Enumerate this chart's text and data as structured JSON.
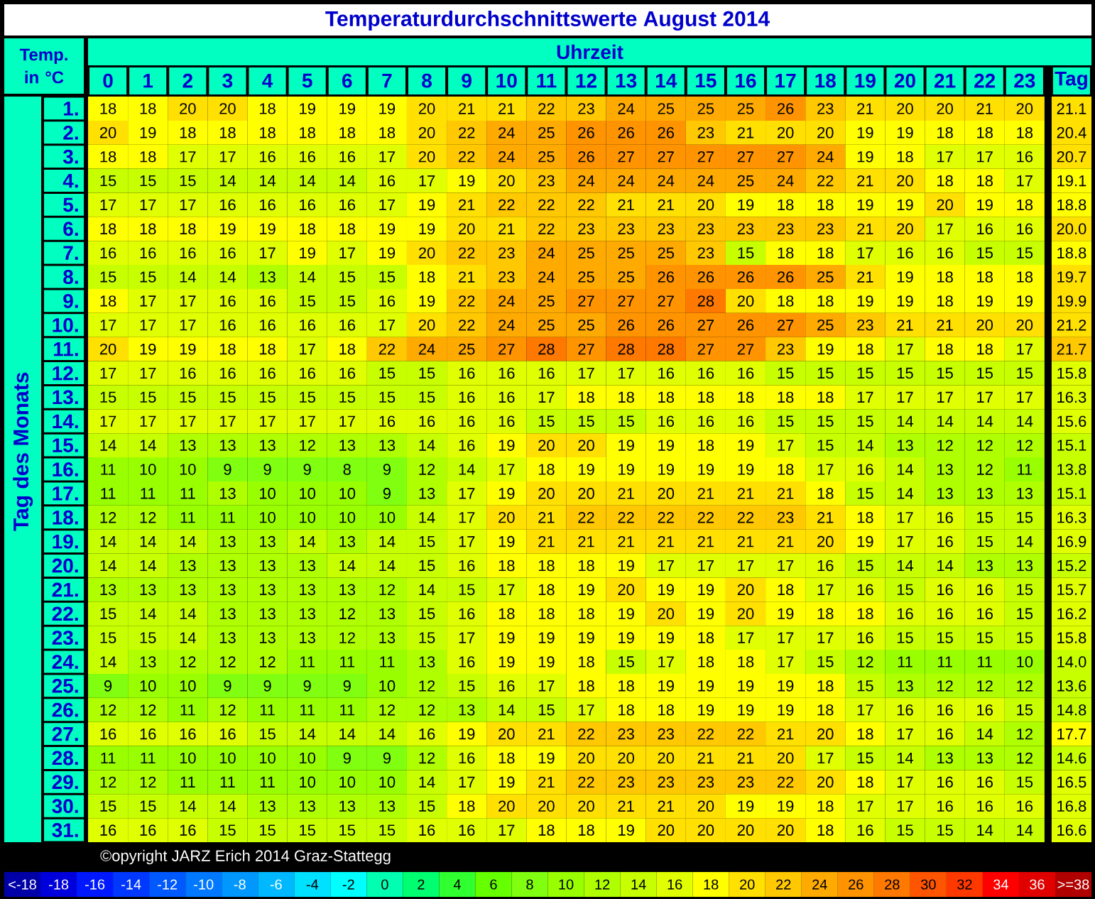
{
  "chart_data": {
    "type": "heatmap",
    "title": "Temperaturdurchschnittswerte August 2014",
    "xlabel": "Uhrzeit",
    "ylabel": "Tag des Monats",
    "clabel": "Temp. in °C",
    "categories": [
      "0",
      "1",
      "2",
      "3",
      "4",
      "5",
      "6",
      "7",
      "8",
      "9",
      "10",
      "11",
      "12",
      "13",
      "14",
      "15",
      "16",
      "17",
      "18",
      "19",
      "20",
      "21",
      "22",
      "23",
      "Tag"
    ],
    "y_categories": [
      "1.",
      "2.",
      "3.",
      "4.",
      "5.",
      "6.",
      "7.",
      "8.",
      "9.",
      "10.",
      "11.",
      "12.",
      "13.",
      "14.",
      "15.",
      "16.",
      "17.",
      "18.",
      "19.",
      "20.",
      "21.",
      "22.",
      "23.",
      "24.",
      "25.",
      "26.",
      "27.",
      "28.",
      "29.",
      "30.",
      "31."
    ],
    "cells": [
      [
        18,
        18,
        20,
        20,
        18,
        19,
        19,
        19,
        20,
        21,
        21,
        22,
        23,
        24,
        25,
        25,
        25,
        26,
        23,
        21,
        20,
        20,
        21,
        20,
        21.1
      ],
      [
        20,
        19,
        18,
        18,
        18,
        18,
        18,
        18,
        20,
        22,
        24,
        25,
        26,
        26,
        26,
        23,
        21,
        20,
        20,
        19,
        19,
        18,
        18,
        18,
        20.4
      ],
      [
        18,
        18,
        17,
        17,
        16,
        16,
        16,
        17,
        20,
        22,
        24,
        25,
        26,
        27,
        27,
        27,
        27,
        27,
        24,
        19,
        18,
        17,
        17,
        16,
        20.7
      ],
      [
        15,
        15,
        15,
        14,
        14,
        14,
        14,
        16,
        17,
        19,
        20,
        23,
        24,
        24,
        24,
        24,
        25,
        24,
        22,
        21,
        20,
        18,
        18,
        17,
        19.1
      ],
      [
        17,
        17,
        17,
        16,
        16,
        16,
        16,
        17,
        19,
        21,
        22,
        22,
        22,
        21,
        21,
        20,
        19,
        18,
        18,
        19,
        19,
        20,
        19,
        18,
        18.8
      ],
      [
        18,
        18,
        18,
        19,
        19,
        18,
        18,
        19,
        19,
        20,
        21,
        22,
        23,
        23,
        23,
        23,
        23,
        23,
        23,
        21,
        20,
        17,
        16,
        16,
        20.0
      ],
      [
        16,
        16,
        16,
        16,
        17,
        19,
        17,
        19,
        20,
        22,
        23,
        24,
        25,
        25,
        25,
        23,
        15,
        18,
        18,
        17,
        16,
        16,
        15,
        15,
        18.8
      ],
      [
        15,
        15,
        14,
        14,
        13,
        14,
        15,
        15,
        18,
        21,
        23,
        24,
        25,
        25,
        26,
        26,
        26,
        26,
        25,
        21,
        19,
        18,
        18,
        18,
        19.7
      ],
      [
        18,
        17,
        17,
        16,
        16,
        15,
        15,
        16,
        19,
        22,
        24,
        25,
        27,
        27,
        27,
        28,
        20,
        18,
        18,
        19,
        19,
        18,
        19,
        19,
        19.9
      ],
      [
        17,
        17,
        17,
        16,
        16,
        16,
        16,
        17,
        20,
        22,
        24,
        25,
        25,
        26,
        26,
        27,
        26,
        27,
        25,
        23,
        21,
        21,
        20,
        20,
        21.2
      ],
      [
        20,
        19,
        19,
        18,
        18,
        17,
        18,
        22,
        24,
        25,
        27,
        28,
        27,
        28,
        28,
        27,
        27,
        23,
        19,
        18,
        17,
        18,
        18,
        17,
        21.7
      ],
      [
        17,
        17,
        16,
        16,
        16,
        16,
        16,
        15,
        15,
        16,
        16,
        16,
        17,
        17,
        16,
        16,
        16,
        15,
        15,
        15,
        15,
        15,
        15,
        15,
        15.8
      ],
      [
        15,
        15,
        15,
        15,
        15,
        15,
        15,
        15,
        15,
        16,
        16,
        17,
        18,
        18,
        18,
        18,
        18,
        18,
        18,
        17,
        17,
        17,
        17,
        17,
        16.3
      ],
      [
        17,
        17,
        17,
        17,
        17,
        17,
        17,
        16,
        16,
        16,
        16,
        15,
        15,
        15,
        16,
        16,
        16,
        15,
        15,
        15,
        14,
        14,
        14,
        14,
        15.6
      ],
      [
        14,
        14,
        13,
        13,
        13,
        12,
        13,
        13,
        14,
        16,
        19,
        20,
        20,
        19,
        19,
        18,
        19,
        17,
        15,
        14,
        13,
        12,
        12,
        12,
        15.1
      ],
      [
        11,
        10,
        10,
        9,
        9,
        9,
        8,
        9,
        12,
        14,
        17,
        18,
        19,
        19,
        19,
        19,
        19,
        18,
        17,
        16,
        14,
        13,
        12,
        11,
        13.8
      ],
      [
        11,
        11,
        11,
        13,
        10,
        10,
        10,
        9,
        13,
        17,
        19,
        20,
        20,
        21,
        20,
        21,
        21,
        21,
        18,
        15,
        14,
        13,
        13,
        13,
        15.1
      ],
      [
        12,
        12,
        11,
        11,
        10,
        10,
        10,
        10,
        14,
        17,
        20,
        21,
        22,
        22,
        22,
        22,
        22,
        23,
        21,
        18,
        17,
        16,
        15,
        15,
        16.3
      ],
      [
        14,
        14,
        14,
        13,
        13,
        14,
        13,
        14,
        15,
        17,
        19,
        21,
        21,
        21,
        21,
        21,
        21,
        21,
        20,
        19,
        17,
        16,
        15,
        14,
        16.9
      ],
      [
        14,
        14,
        13,
        13,
        13,
        13,
        14,
        14,
        15,
        16,
        18,
        18,
        18,
        19,
        17,
        17,
        17,
        17,
        16,
        15,
        14,
        14,
        13,
        13,
        15.2
      ],
      [
        13,
        13,
        13,
        13,
        13,
        13,
        13,
        12,
        14,
        15,
        17,
        18,
        19,
        20,
        19,
        19,
        20,
        18,
        17,
        16,
        15,
        16,
        16,
        15,
        15.7
      ],
      [
        15,
        14,
        14,
        13,
        13,
        13,
        12,
        13,
        15,
        16,
        18,
        18,
        18,
        19,
        20,
        19,
        20,
        19,
        18,
        18,
        16,
        16,
        16,
        15,
        16.2
      ],
      [
        15,
        15,
        14,
        13,
        13,
        13,
        12,
        13,
        15,
        17,
        19,
        19,
        19,
        19,
        19,
        18,
        17,
        17,
        17,
        16,
        15,
        15,
        15,
        15,
        15.8
      ],
      [
        14,
        13,
        12,
        12,
        12,
        11,
        11,
        11,
        13,
        16,
        19,
        19,
        18,
        15,
        17,
        18,
        18,
        17,
        15,
        12,
        11,
        11,
        11,
        10,
        14.0
      ],
      [
        9,
        10,
        10,
        9,
        9,
        9,
        9,
        10,
        12,
        15,
        16,
        17,
        18,
        18,
        19,
        19,
        19,
        19,
        18,
        15,
        13,
        12,
        12,
        12,
        13.6
      ],
      [
        12,
        12,
        11,
        12,
        11,
        11,
        11,
        12,
        12,
        13,
        14,
        15,
        17,
        18,
        18,
        19,
        19,
        19,
        18,
        17,
        16,
        16,
        16,
        15,
        14.8
      ],
      [
        16,
        16,
        16,
        16,
        15,
        14,
        14,
        14,
        16,
        19,
        20,
        21,
        22,
        23,
        23,
        22,
        22,
        21,
        20,
        18,
        17,
        16,
        14,
        12,
        17.7
      ],
      [
        11,
        11,
        10,
        10,
        10,
        10,
        9,
        9,
        12,
        16,
        18,
        19,
        20,
        20,
        20,
        21,
        21,
        20,
        17,
        15,
        14,
        13,
        13,
        12,
        14.6
      ],
      [
        12,
        12,
        11,
        11,
        11,
        10,
        10,
        10,
        14,
        17,
        19,
        21,
        22,
        23,
        23,
        23,
        23,
        22,
        20,
        18,
        17,
        16,
        16,
        15,
        16.5
      ],
      [
        15,
        15,
        14,
        14,
        13,
        13,
        13,
        13,
        15,
        18,
        20,
        20,
        20,
        21,
        21,
        20,
        19,
        19,
        18,
        17,
        17,
        16,
        16,
        16,
        16.8
      ],
      [
        16,
        16,
        16,
        15,
        15,
        15,
        15,
        15,
        16,
        16,
        17,
        18,
        18,
        19,
        20,
        20,
        20,
        20,
        18,
        16,
        15,
        15,
        14,
        14,
        16.6
      ]
    ],
    "cell_labels": [
      [
        "18",
        "18",
        "20",
        "20",
        "18",
        "19",
        "19",
        "19",
        "20",
        "21",
        "21",
        "22",
        "23",
        "24",
        "25",
        "25",
        "25",
        "26",
        "23",
        "21",
        "20",
        "20",
        "21",
        "20",
        "21.1"
      ],
      [
        "20",
        "19",
        "18",
        "18",
        "18",
        "18",
        "18",
        "18",
        "20",
        "22",
        "24",
        "25",
        "26",
        "26",
        "26",
        "23",
        "21",
        "20",
        "20",
        "19",
        "19",
        "18",
        "18",
        "18",
        "20.4"
      ],
      [
        "18",
        "18",
        "17",
        "17",
        "16",
        "16",
        "16",
        "17",
        "20",
        "22",
        "24",
        "25",
        "26",
        "27",
        "27",
        "27",
        "27",
        "27",
        "24",
        "19",
        "18",
        "17",
        "17",
        "16",
        "20.7"
      ],
      [
        "15",
        "15",
        "15",
        "14",
        "14",
        "14",
        "14",
        "16",
        "17",
        "19",
        "20",
        "23",
        "24",
        "24",
        "24",
        "24",
        "25",
        "24",
        "22",
        "21",
        "20",
        "18",
        "18",
        "17",
        "19.1"
      ],
      [
        "17",
        "17",
        "17",
        "16",
        "16",
        "16",
        "16",
        "17",
        "19",
        "21",
        "22",
        "22",
        "22",
        "21",
        "21",
        "20",
        "19",
        "18",
        "18",
        "19",
        "19",
        "20",
        "19",
        "18",
        "18.8"
      ],
      [
        "18",
        "18",
        "18",
        "19",
        "19",
        "18",
        "18",
        "19",
        "19",
        "20",
        "21",
        "22",
        "23",
        "23",
        "23",
        "23",
        "23",
        "23",
        "23",
        "21",
        "20",
        "17",
        "16",
        "16",
        "20.0"
      ],
      [
        "16",
        "16",
        "16",
        "16",
        "17",
        "19",
        "17",
        "19",
        "20",
        "22",
        "23",
        "24",
        "25",
        "25",
        "25",
        "23",
        "15",
        "18",
        "18",
        "17",
        "16",
        "16",
        "15",
        "15",
        "18.8"
      ],
      [
        "15",
        "15",
        "14",
        "14",
        "13",
        "14",
        "15",
        "15",
        "18",
        "21",
        "23",
        "24",
        "25",
        "25",
        "26",
        "26",
        "26",
        "26",
        "25",
        "21",
        "19",
        "18",
        "18",
        "18",
        "19.7"
      ],
      [
        "18",
        "17",
        "17",
        "16",
        "16",
        "15",
        "15",
        "16",
        "19",
        "22",
        "24",
        "25",
        "27",
        "27",
        "27",
        "28",
        "20",
        "18",
        "18",
        "19",
        "19",
        "18",
        "19",
        "19",
        "19.9"
      ],
      [
        "17",
        "17",
        "17",
        "16",
        "16",
        "16",
        "16",
        "17",
        "20",
        "22",
        "24",
        "25",
        "25",
        "26",
        "26",
        "27",
        "26",
        "27",
        "25",
        "23",
        "21",
        "21",
        "20",
        "20",
        "21.2"
      ],
      [
        "20",
        "19",
        "19",
        "18",
        "18",
        "17",
        "18",
        "22",
        "24",
        "25",
        "27",
        "28",
        "27",
        "28",
        "28",
        "27",
        "27",
        "23",
        "19",
        "18",
        "17",
        "18",
        "18",
        "17",
        "21.7"
      ],
      [
        "17",
        "17",
        "16",
        "16",
        "16",
        "16",
        "16",
        "15",
        "15",
        "16",
        "16",
        "16",
        "17",
        "17",
        "16",
        "16",
        "16",
        "15",
        "15",
        "15",
        "15",
        "15",
        "15",
        "15",
        "15.8"
      ],
      [
        "15",
        "15",
        "15",
        "15",
        "15",
        "15",
        "15",
        "15",
        "15",
        "16",
        "16",
        "17",
        "18",
        "18",
        "18",
        "18",
        "18",
        "18",
        "18",
        "17",
        "17",
        "17",
        "17",
        "17",
        "16.3"
      ],
      [
        "17",
        "17",
        "17",
        "17",
        "17",
        "17",
        "17",
        "16",
        "16",
        "16",
        "16",
        "15",
        "15",
        "15",
        "16",
        "16",
        "16",
        "15",
        "15",
        "15",
        "14",
        "14",
        "14",
        "14",
        "15.6"
      ],
      [
        "14",
        "14",
        "13",
        "13",
        "13",
        "12",
        "13",
        "13",
        "14",
        "16",
        "19",
        "20",
        "20",
        "19",
        "19",
        "18",
        "19",
        "17",
        "15",
        "14",
        "13",
        "12",
        "12",
        "12",
        "15.1"
      ],
      [
        "11",
        "10",
        "10",
        "9",
        "9",
        "9",
        "8",
        "9",
        "12",
        "14",
        "17",
        "18",
        "19",
        "19",
        "19",
        "19",
        "19",
        "18",
        "17",
        "16",
        "14",
        "13",
        "12",
        "11",
        "13.8"
      ],
      [
        "11",
        "11",
        "11",
        "13",
        "10",
        "10",
        "10",
        "9",
        "13",
        "17",
        "19",
        "20",
        "20",
        "21",
        "20",
        "21",
        "21",
        "21",
        "18",
        "15",
        "14",
        "13",
        "13",
        "13",
        "15.1"
      ],
      [
        "12",
        "12",
        "11",
        "11",
        "10",
        "10",
        "10",
        "10",
        "14",
        "17",
        "20",
        "21",
        "22",
        "22",
        "22",
        "22",
        "22",
        "23",
        "21",
        "18",
        "17",
        "16",
        "15",
        "15",
        "16.3"
      ],
      [
        "14",
        "14",
        "14",
        "13",
        "13",
        "14",
        "13",
        "14",
        "15",
        "17",
        "19",
        "21",
        "21",
        "21",
        "21",
        "21",
        "21",
        "21",
        "20",
        "19",
        "17",
        "16",
        "15",
        "14",
        "16.9"
      ],
      [
        "14",
        "14",
        "13",
        "13",
        "13",
        "13",
        "14",
        "14",
        "15",
        "16",
        "18",
        "18",
        "18",
        "19",
        "17",
        "17",
        "17",
        "17",
        "16",
        "15",
        "14",
        "14",
        "13",
        "13",
        "15.2"
      ],
      [
        "13",
        "13",
        "13",
        "13",
        "13",
        "13",
        "13",
        "12",
        "14",
        "15",
        "17",
        "18",
        "19",
        "20",
        "19",
        "19",
        "20",
        "18",
        "17",
        "16",
        "15",
        "16",
        "16",
        "15",
        "15.7"
      ],
      [
        "15",
        "14",
        "14",
        "13",
        "13",
        "13",
        "12",
        "13",
        "15",
        "16",
        "18",
        "18",
        "18",
        "19",
        "20",
        "19",
        "20",
        "19",
        "18",
        "18",
        "16",
        "16",
        "16",
        "15",
        "16.2"
      ],
      [
        "15",
        "15",
        "14",
        "13",
        "13",
        "13",
        "12",
        "13",
        "15",
        "17",
        "19",
        "19",
        "19",
        "19",
        "19",
        "18",
        "17",
        "17",
        "17",
        "16",
        "15",
        "15",
        "15",
        "15",
        "15.8"
      ],
      [
        "14",
        "13",
        "12",
        "12",
        "12",
        "11",
        "11",
        "11",
        "13",
        "16",
        "19",
        "19",
        "18",
        "15",
        "17",
        "18",
        "18",
        "17",
        "15",
        "12",
        "11",
        "11",
        "11",
        "10",
        "14.0"
      ],
      [
        "9",
        "10",
        "10",
        "9",
        "9",
        "9",
        "9",
        "10",
        "12",
        "15",
        "16",
        "17",
        "18",
        "18",
        "19",
        "19",
        "19",
        "19",
        "18",
        "15",
        "13",
        "12",
        "12",
        "12",
        "13.6"
      ],
      [
        "12",
        "12",
        "11",
        "12",
        "11",
        "11",
        "11",
        "12",
        "12",
        "13",
        "14",
        "15",
        "17",
        "18",
        "18",
        "19",
        "19",
        "19",
        "18",
        "17",
        "16",
        "16",
        "16",
        "15",
        "14.8"
      ],
      [
        "16",
        "16",
        "16",
        "16",
        "15",
        "14",
        "14",
        "14",
        "16",
        "19",
        "20",
        "21",
        "22",
        "23",
        "23",
        "22",
        "22",
        "21",
        "20",
        "18",
        "17",
        "16",
        "14",
        "12",
        "17.7"
      ],
      [
        "11",
        "11",
        "10",
        "10",
        "10",
        "10",
        "9",
        "9",
        "12",
        "16",
        "18",
        "19",
        "20",
        "20",
        "20",
        "21",
        "21",
        "20",
        "17",
        "15",
        "14",
        "13",
        "13",
        "12",
        "14.6"
      ],
      [
        "12",
        "12",
        "11",
        "11",
        "11",
        "10",
        "10",
        "10",
        "14",
        "17",
        "19",
        "21",
        "22",
        "23",
        "23",
        "23",
        "23",
        "22",
        "20",
        "18",
        "17",
        "16",
        "16",
        "15",
        "16.5"
      ],
      [
        "15",
        "15",
        "14",
        "14",
        "13",
        "13",
        "13",
        "13",
        "15",
        "18",
        "20",
        "20",
        "20",
        "21",
        "21",
        "20",
        "19",
        "19",
        "18",
        "17",
        "17",
        "16",
        "16",
        "16",
        "16.8"
      ],
      [
        "16",
        "16",
        "16",
        "15",
        "15",
        "15",
        "15",
        "15",
        "16",
        "16",
        "17",
        "18",
        "18",
        "19",
        "20",
        "20",
        "20",
        "20",
        "18",
        "16",
        "15",
        "15",
        "14",
        "14",
        "16.6"
      ]
    ],
    "data_labels": true,
    "clim": [
      -21,
      39
    ],
    "cticks": [
      {
        "value": -20,
        "label": "<-18"
      },
      -18,
      -16,
      -14,
      -12,
      -10,
      -8,
      -6,
      -4,
      -2,
      0,
      2,
      4,
      6,
      8,
      10,
      12,
      14,
      16,
      18,
      20,
      22,
      24,
      26,
      28,
      30,
      32,
      34,
      36,
      {
        "value": 38,
        "label": ">=38"
      }
    ],
    "colors": [
      "#0000a8",
      "#0000dc",
      "#0018ff",
      "#0038ff",
      "#0058ff",
      "#0078ff",
      "#0098ff",
      "#00b8ff",
      "#00e0ff",
      "#00ffff",
      "#00ffb0",
      "#00ff70",
      "#30ff30",
      "#66ff00",
      "#80ff10",
      "#99ff00",
      "#b0ff00",
      "#c8ff00",
      "#e0ff00",
      "#ffff00",
      "#ffe000",
      "#ffc800",
      "#ffaa00",
      "#ff9400",
      "#ff7800",
      "#ff5500",
      "#ff3800",
      "#ff0000",
      "#e00000",
      "#b00000"
    ],
    "annotations": [
      "©opyright JARZ Erich 2014 Graz-Stattegg"
    ]
  }
}
